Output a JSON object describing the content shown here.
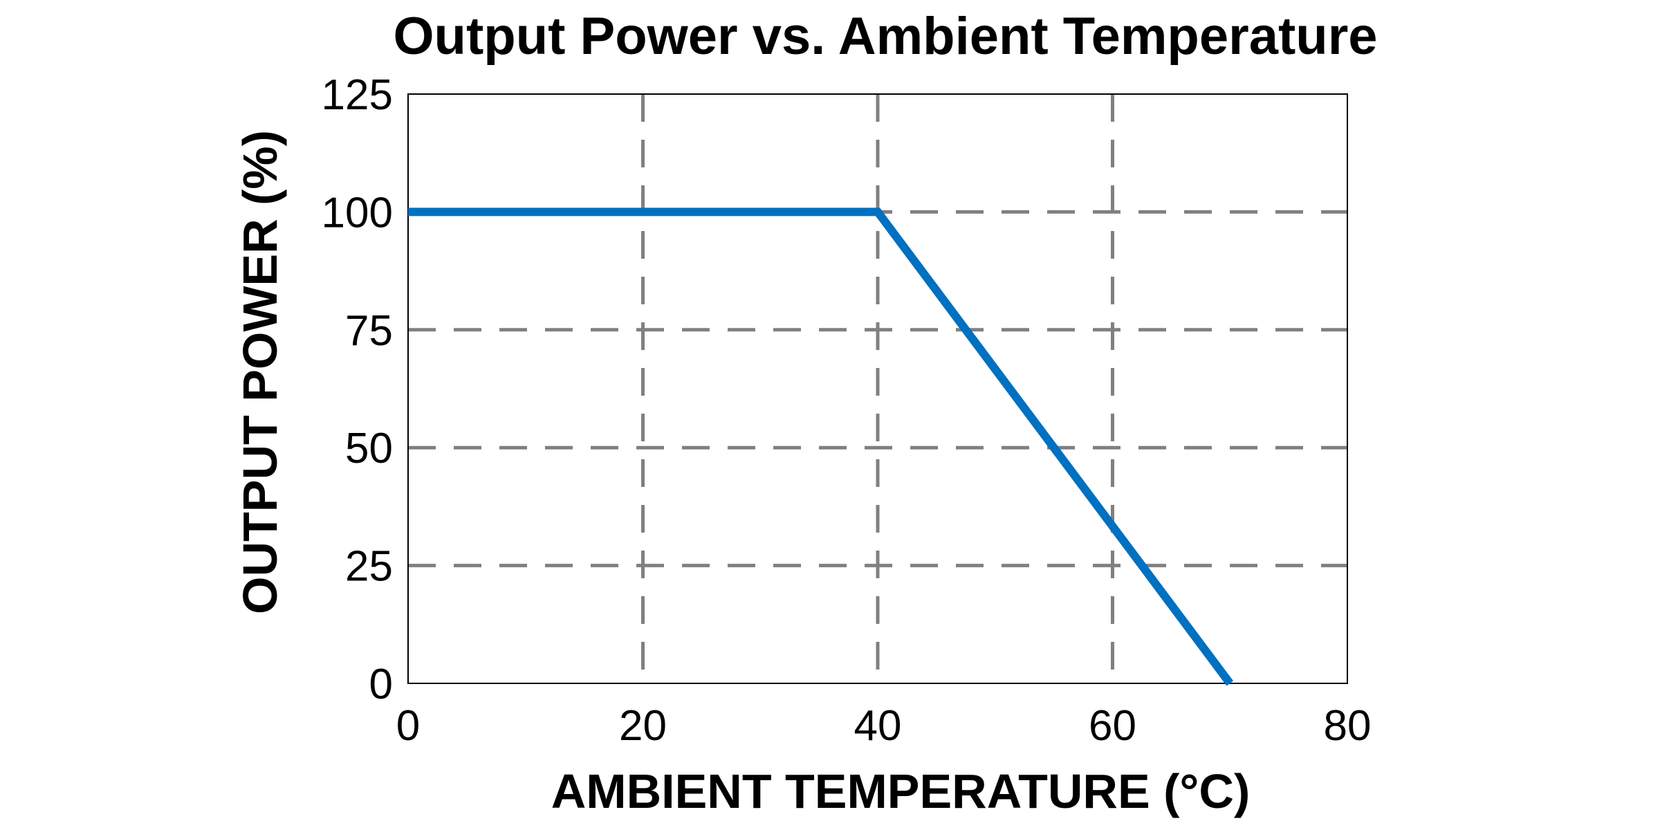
{
  "chart_data": {
    "type": "line",
    "title": "Output Power vs. Ambient Temperature",
    "xlabel": "AMBIENT TEMPERATURE (°C)",
    "ylabel": "OUTPUT POWER (%)",
    "xlim": [
      0,
      80
    ],
    "ylim": [
      0,
      125
    ],
    "xticks": [
      0,
      20,
      40,
      60,
      80
    ],
    "yticks": [
      0,
      25,
      50,
      75,
      100,
      125
    ],
    "grid": true,
    "grid_style": "dashed",
    "series": [
      {
        "color": "#0070c0",
        "x": [
          0,
          40,
          70
        ],
        "y": [
          100,
          100,
          0
        ]
      }
    ]
  }
}
